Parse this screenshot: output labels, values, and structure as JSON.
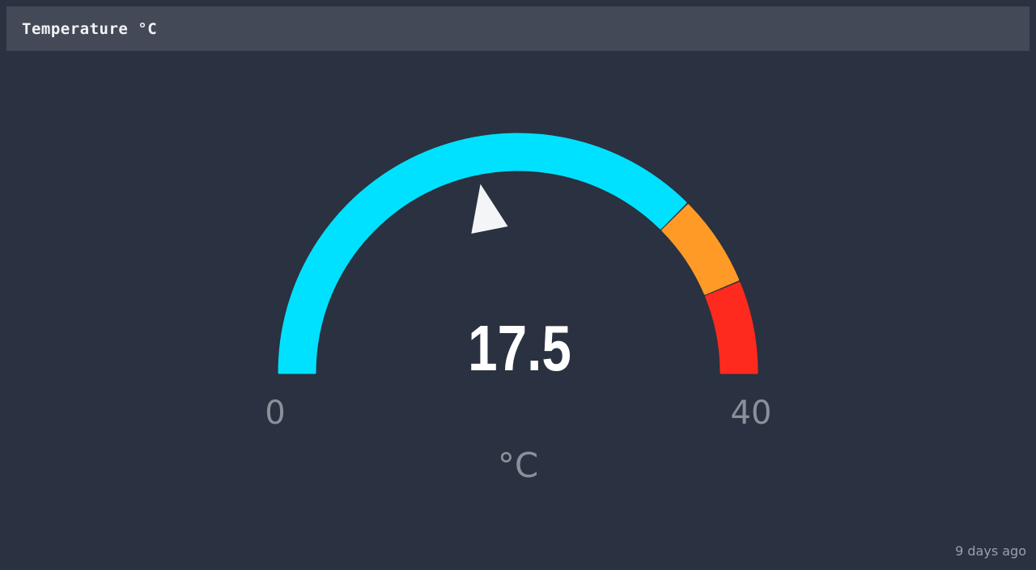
{
  "header": {
    "title": "Temperature °C"
  },
  "gauge": {
    "value": 17.5,
    "value_label": "17.5",
    "min": 0,
    "max": 40,
    "min_label": "0",
    "max_label": "40",
    "unit": "°C",
    "segments": [
      {
        "from": 0,
        "to": 30,
        "color": "#00e1ff"
      },
      {
        "from": 30,
        "to": 35,
        "color": "#ff9a26"
      },
      {
        "from": 35,
        "to": 40,
        "color": "#ff2a1e"
      }
    ],
    "needle_color": "#f4f5f7"
  },
  "footer": {
    "updated": "9 days ago"
  }
}
